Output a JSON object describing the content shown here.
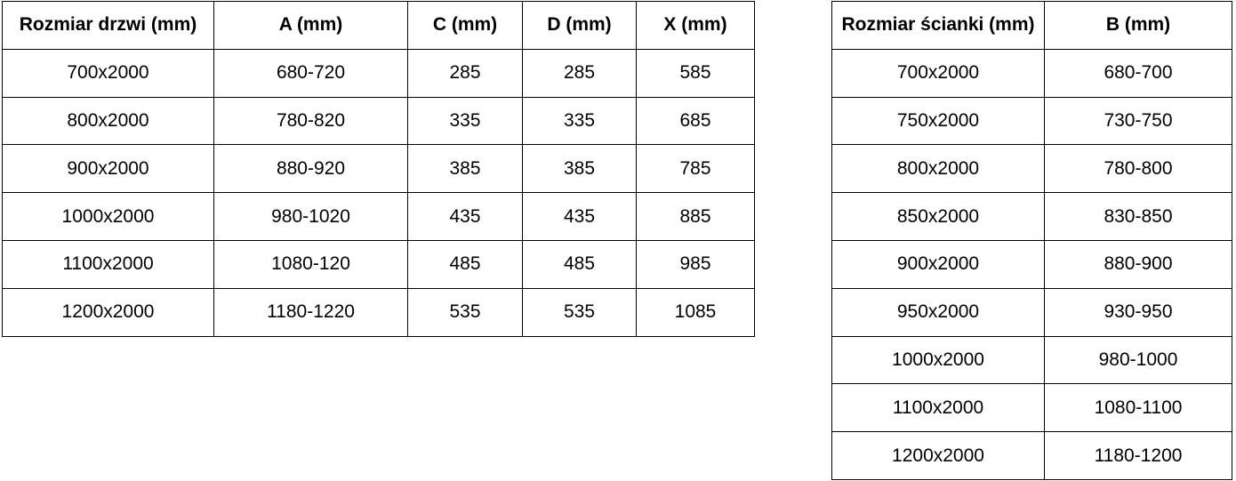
{
  "left_table": {
    "title": "door-size-table",
    "columns": [
      "Rozmiar drzwi (mm)",
      "A (mm)",
      "C (mm)",
      "D (mm)",
      "X (mm)"
    ],
    "rows": [
      [
        "700x2000",
        "680-720",
        "285",
        "285",
        "585"
      ],
      [
        "800x2000",
        "780-820",
        "335",
        "335",
        "685"
      ],
      [
        "900x2000",
        "880-920",
        "385",
        "385",
        "785"
      ],
      [
        "1000x2000",
        "980-1020",
        "435",
        "435",
        "885"
      ],
      [
        "1100x2000",
        "1080-120",
        "485",
        "485",
        "985"
      ],
      [
        "1200x2000",
        "1180-1220",
        "535",
        "535",
        "1085"
      ]
    ]
  },
  "right_table": {
    "title": "wall-panel-size-table",
    "columns": [
      "Rozmiar ścianki (mm)",
      "B (mm)"
    ],
    "rows": [
      [
        "700x2000",
        "680-700"
      ],
      [
        "750x2000",
        "730-750"
      ],
      [
        "800x2000",
        "780-800"
      ],
      [
        "850x2000",
        "830-850"
      ],
      [
        "900x2000",
        "880-900"
      ],
      [
        "950x2000",
        "930-950"
      ],
      [
        "1000x2000",
        "980-1000"
      ],
      [
        "1100x2000",
        "1080-1100"
      ],
      [
        "1200x2000",
        "1180-1200"
      ]
    ]
  },
  "colors": {
    "background": "#ffffff",
    "border": "#000000",
    "text": "#000000"
  }
}
